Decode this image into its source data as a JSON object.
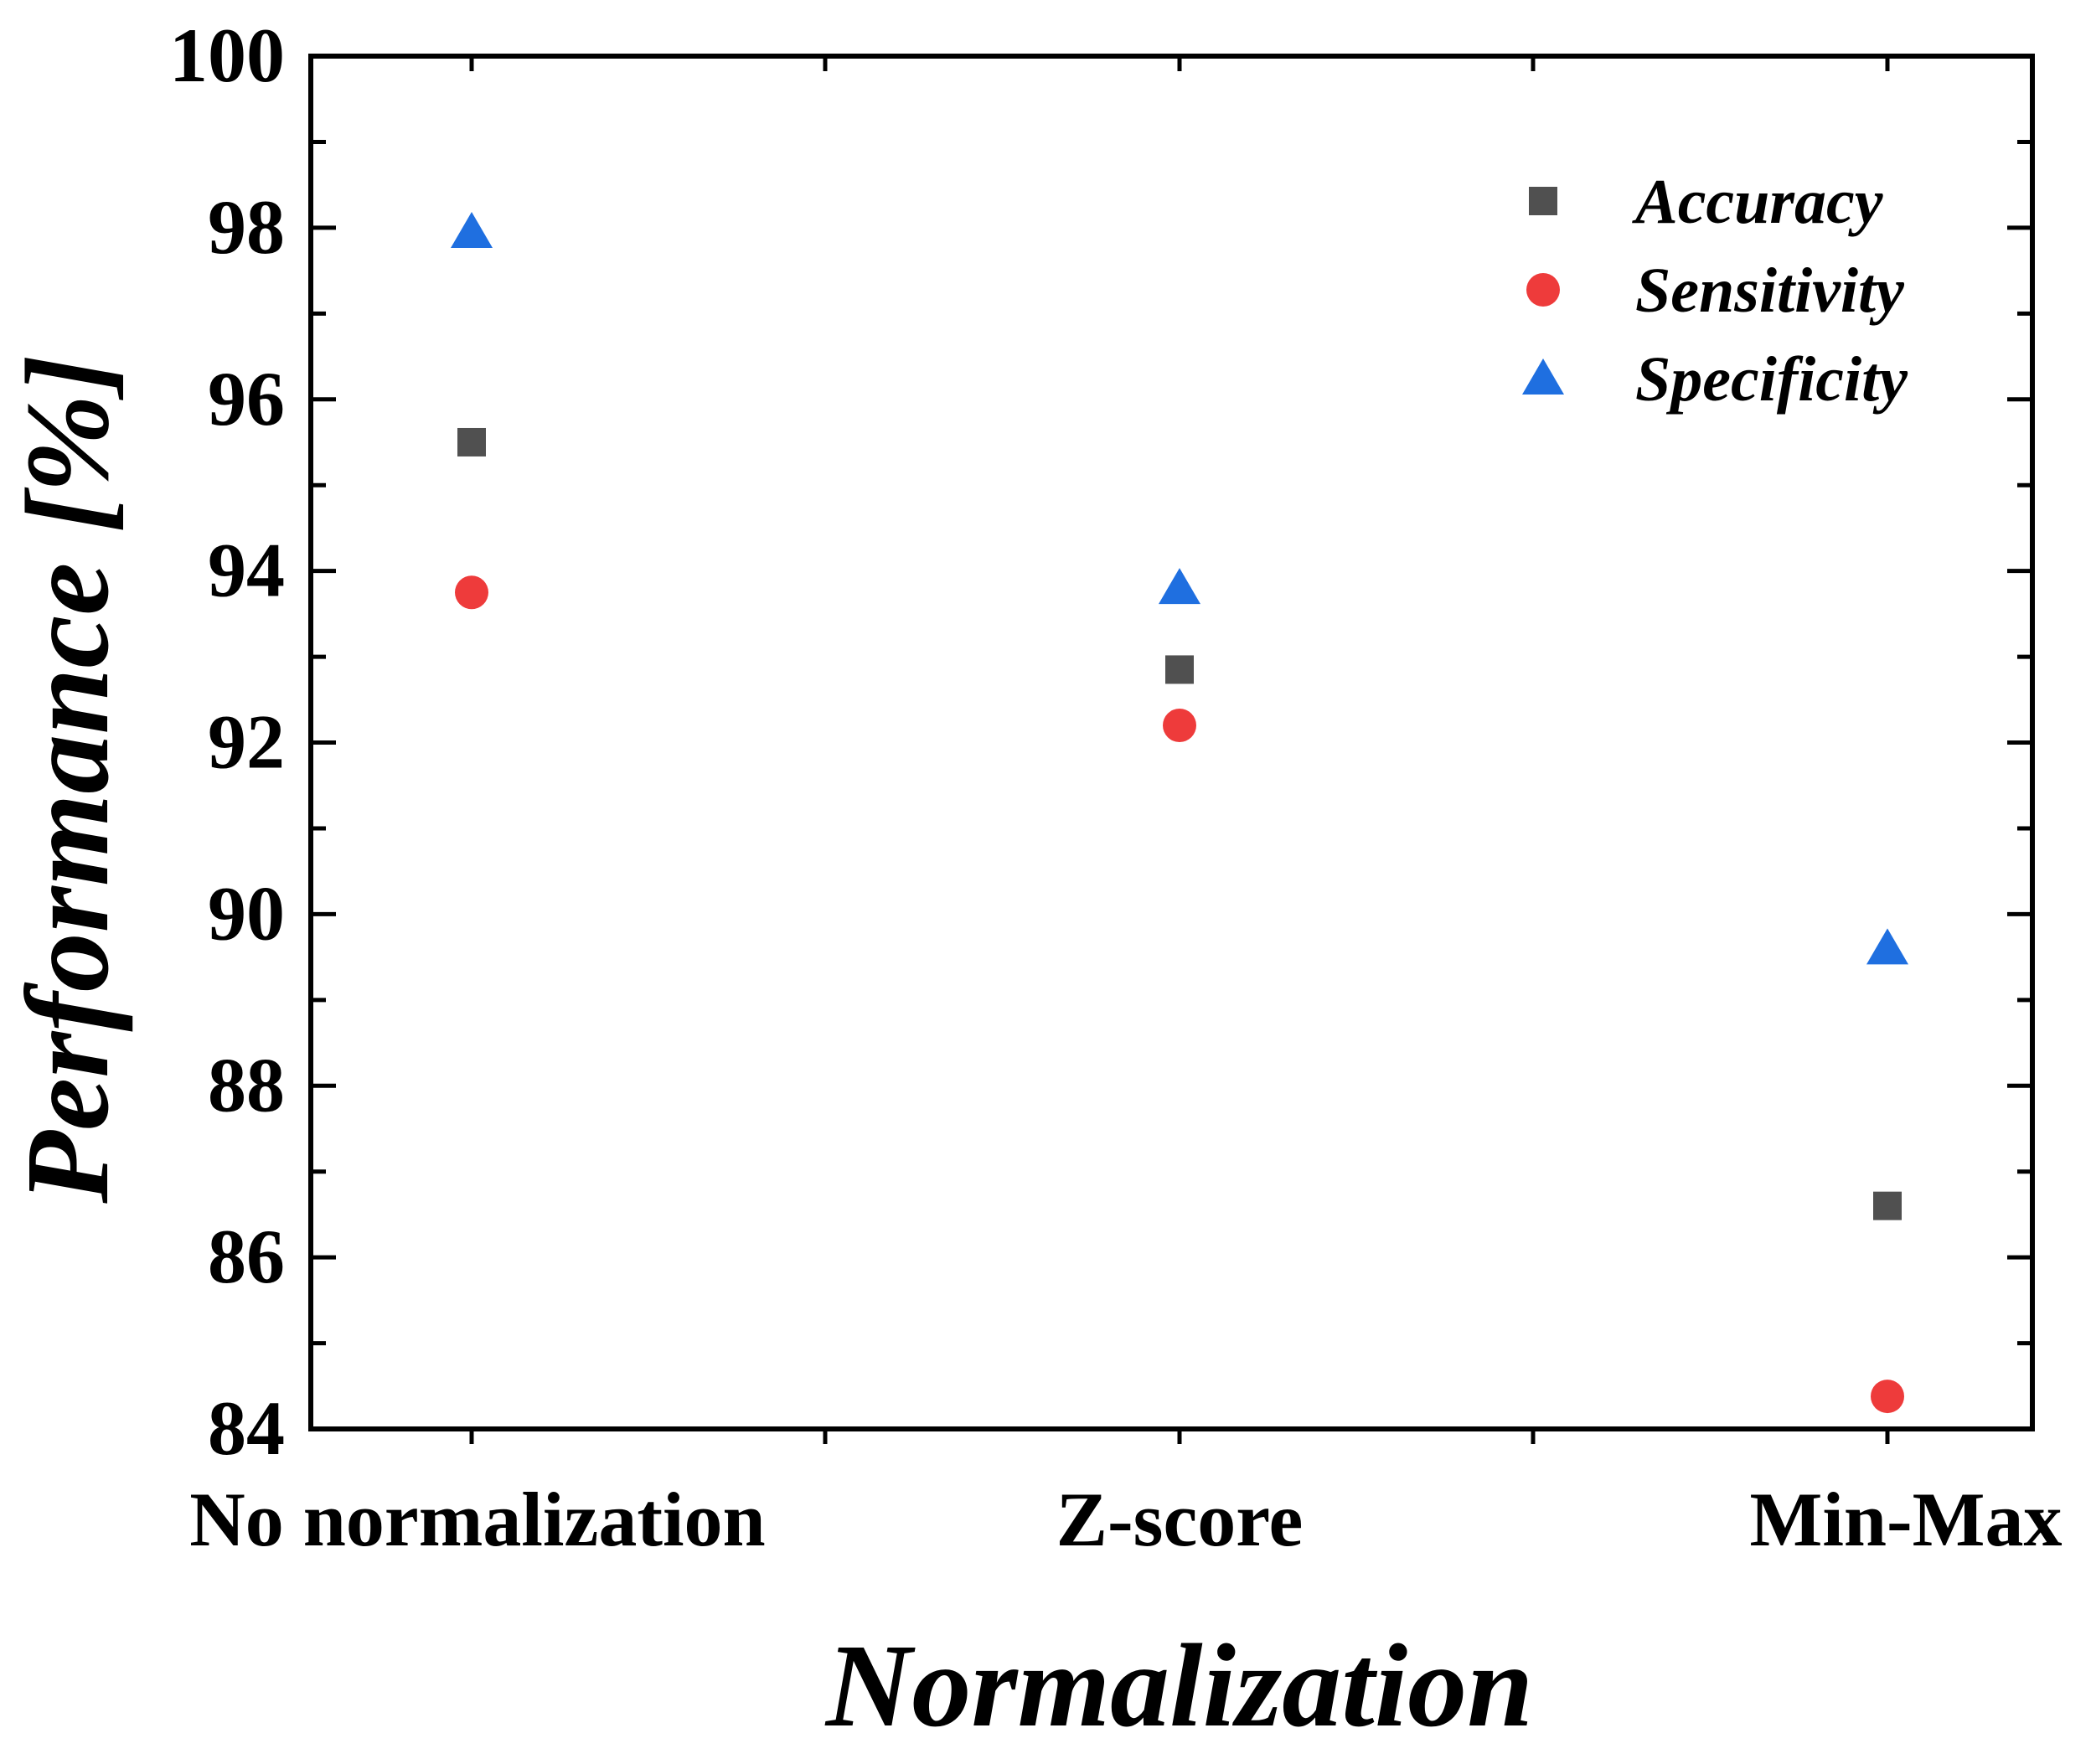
{
  "chart_data": {
    "type": "scatter",
    "xlabel": "Normalization",
    "ylabel": "Performance [%]",
    "categories": [
      "No normalization",
      "Z-score",
      "Min-Max"
    ],
    "ylim": [
      84,
      100
    ],
    "y_major_ticks": [
      84,
      86,
      88,
      90,
      92,
      94,
      96,
      98,
      100
    ],
    "y_minor_step": 1,
    "grid": false,
    "legend_position": "top-right",
    "series": [
      {
        "name": "Accuracy",
        "marker": "square",
        "color": "#505050",
        "values": [
          95.5,
          92.85,
          86.6
        ]
      },
      {
        "name": "Sensitivity",
        "marker": "circle",
        "color": "#ee3b3b",
        "values": [
          93.75,
          92.2,
          84.38
        ]
      },
      {
        "name": "Specificity",
        "marker": "triangle",
        "color": "#1f6fe0",
        "values": [
          97.95,
          93.8,
          89.6
        ]
      }
    ]
  }
}
